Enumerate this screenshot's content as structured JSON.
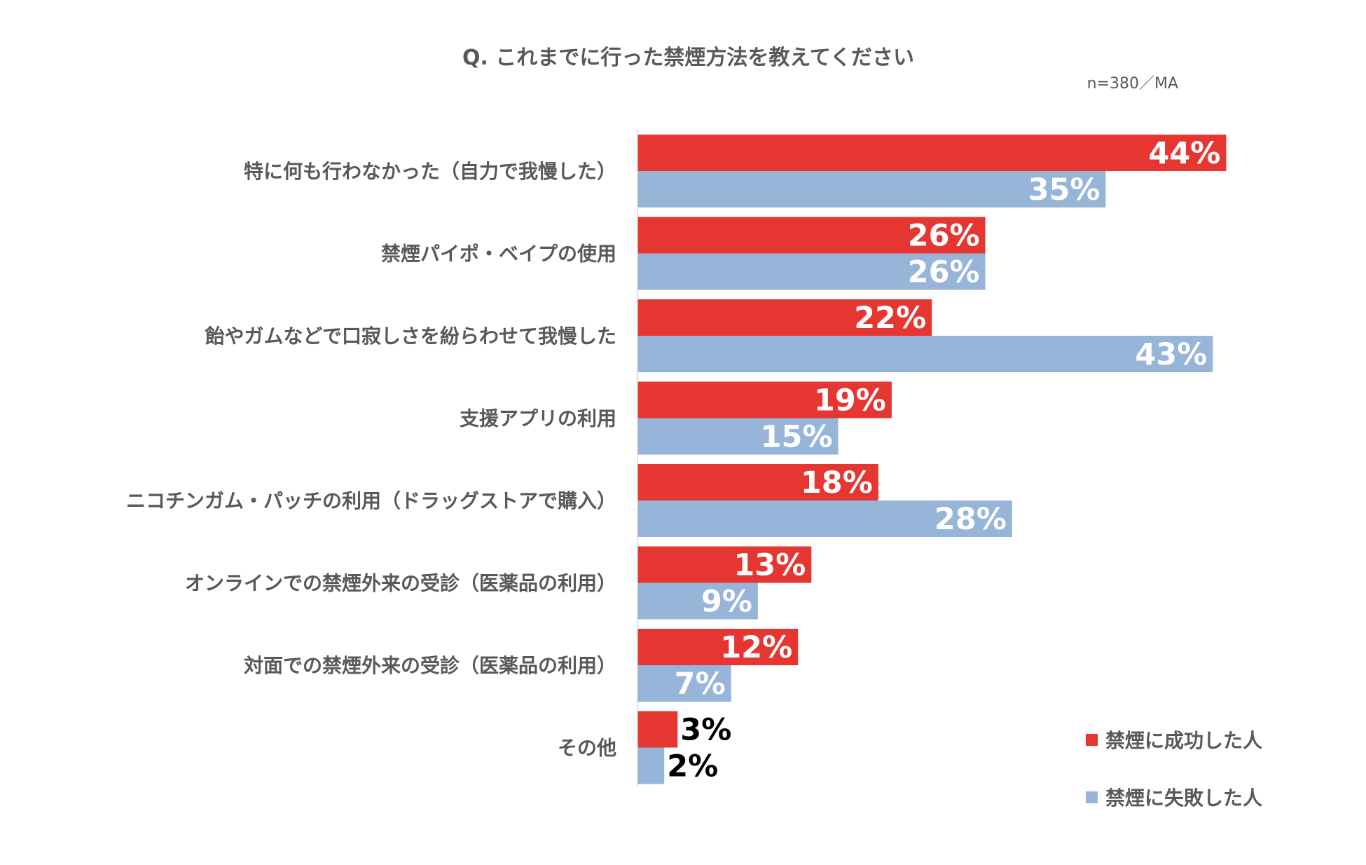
{
  "chart_data": {
    "type": "bar",
    "orientation": "horizontal",
    "title": "Q.  これまでに行った禁煙方法を教えてください",
    "sample_note": "n=380／MA",
    "categories": [
      "特に何も行わなかった（自力で我慢した）",
      "禁煙パイポ・ベイプの使用",
      "飴やガムなどで口寂しさを紛らわせて我慢した",
      "支援アプリの利用",
      "ニコチンガム・パッチの利用（ドラッグストアで購入）",
      "オンラインでの禁煙外来の受診（医薬品の利用）",
      "対面での禁煙外来の受診（医薬品の利用）",
      "その他"
    ],
    "series": [
      {
        "name": "禁煙に成功した人",
        "color": "#e53631",
        "values": [
          44,
          26,
          22,
          19,
          18,
          13,
          12,
          3
        ],
        "labels": [
          "44%",
          "26%",
          "22%",
          "19%",
          "18%",
          "13%",
          "12%",
          "3%"
        ]
      },
      {
        "name": "禁煙に失敗した人",
        "color": "#97b4d9",
        "values": [
          35,
          26,
          43,
          15,
          28,
          9,
          7,
          2
        ],
        "labels": [
          "35%",
          "26%",
          "43%",
          "15%",
          "28%",
          "9%",
          "7%",
          "2%"
        ]
      }
    ],
    "unit": "%",
    "xlim": [
      0,
      50
    ],
    "grid": false,
    "legend_position": "bottom-right"
  }
}
